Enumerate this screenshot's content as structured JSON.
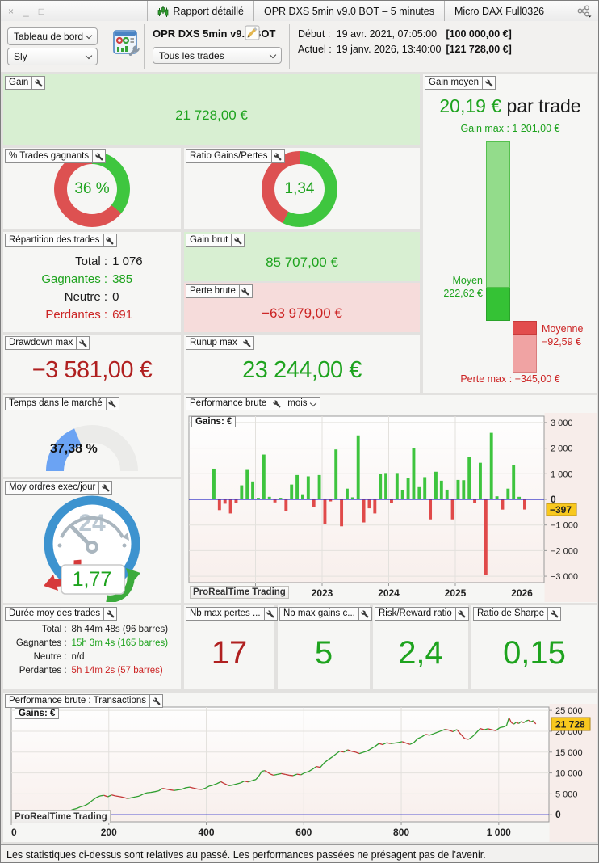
{
  "window": {
    "controls": {
      "close": "×",
      "minimize": "_",
      "maximize": "□"
    },
    "tab_report": "Rapport détaillé",
    "tab_strategy": "OPR DXS 5min v9.0 BOT – 5 minutes",
    "tab_instrument": "Micro DAX Full0326"
  },
  "toolbar": {
    "dashboard_select": "Tableau de bord",
    "user_select": "Sly",
    "strategy_name": "OPR DXS 5min v9.0 BOT",
    "trades_select": "Tous les trades",
    "start": {
      "label": "Début :",
      "datetime": "19 avr. 2021, 07:05:00",
      "amount": "[100 000,00 €]"
    },
    "current": {
      "label": "Actuel :",
      "datetime": "19 janv. 2026, 13:40:00",
      "amount": "[121 728,00 €]"
    }
  },
  "panels": {
    "gain": {
      "label": "Gain",
      "value": "21 728,00 €"
    },
    "pct_wins": {
      "label": "% Trades gagnants",
      "value": "36 %",
      "green_pct": 36
    },
    "ratio_gains_pertes": {
      "label": "Ratio Gains/Pertes",
      "value": "1,34",
      "green_pct": 57.3
    },
    "repartition": {
      "label": "Répartition des trades",
      "rows": [
        {
          "k": "Total :",
          "v": "1 076",
          "cls": "t-black",
          "kcls": "t-black"
        },
        {
          "k": "Gagnantes :",
          "v": "385",
          "cls": "t-green",
          "kcls": "t-green"
        },
        {
          "k": "Neutre :",
          "v": "0",
          "cls": "t-black",
          "kcls": "t-black"
        },
        {
          "k": "Perdantes :",
          "v": "691",
          "cls": "t-red",
          "kcls": "t-red"
        }
      ]
    },
    "gain_brut": {
      "label": "Gain brut",
      "value": "85 707,00 €"
    },
    "perte_brute": {
      "label": "Perte brute",
      "value": "−63 979,00 €"
    },
    "drawdown_max": {
      "label": "Drawdown max",
      "value": "−3 581,00 €"
    },
    "runup_max": {
      "label": "Runup max",
      "value": "23 244,00 €"
    },
    "gain_moyen": {
      "label": "Gain moyen",
      "value": "20,19 €",
      "suffix": " par trade",
      "gain_max": "Gain max : 1 201,00 €",
      "moyen_label": "Moyen",
      "moyen_value": "222,62 €",
      "moyenne_label": "Moyenne",
      "moyenne_value": "−92,59 €",
      "perte_max": "Perte max : −345,00 €",
      "scale": {
        "gain_max_v": 1201,
        "moyen_v": 222.62,
        "moyenne_v": -92.59,
        "perte_max_v": -345
      }
    },
    "temps_marche": {
      "label": "Temps dans le marché",
      "value": "37,38 %",
      "pct": 37.38
    },
    "moy_ordres": {
      "label": "Moy ordres exec/jour",
      "value": "1,77",
      "clock_label": "24"
    },
    "perf_mois": {
      "label": "Performance brute",
      "period": "mois"
    },
    "duree": {
      "label": "Durée moy des trades",
      "rows": [
        {
          "k": "Total :",
          "v": "8h 44m 48s (96 barres)",
          "cls": "t-black",
          "kcls": "t-black"
        },
        {
          "k": "Gagnantes :",
          "v": "15h 3m 4s (165 barres)",
          "cls": "t-green",
          "kcls": "t-black"
        },
        {
          "k": "Neutre :",
          "v": "n/d",
          "cls": "t-black",
          "kcls": "t-black"
        },
        {
          "k": "Perdantes :",
          "v": "5h 14m 2s (57 barres)",
          "cls": "t-red",
          "kcls": "t-black"
        }
      ]
    },
    "nb_max_pertes": {
      "label": "Nb max pertes ...",
      "value": "17"
    },
    "nb_max_gains": {
      "label": "Nb max gains c...",
      "value": "5"
    },
    "risk_reward": {
      "label": "Risk/Reward ratio",
      "value": "2,4"
    },
    "sharpe": {
      "label": "Ratio de Sharpe",
      "value": "0,15"
    },
    "perf_trans": {
      "label": "Performance brute : Transactions"
    }
  },
  "watermark": "ProRealTime Trading",
  "status_bar": "Les statistiques ci-dessus sont relatives au passé. Les performances passées ne présagent pas de l'avenir.",
  "colors": {
    "green_text": "#1ea31e",
    "red_text": "#cc2424",
    "dark_red": "#b02020",
    "bar_green": "#3ec43e",
    "bar_red": "#e04a4a",
    "blue_line": "#2929c8",
    "gauge_blue": "#6ba3f3",
    "tag_bg": "#f8c81e",
    "donut_green": "#3fc63f",
    "donut_red": "#dd5151"
  },
  "chart_data": [
    {
      "type": "bar",
      "title": "Gains: €",
      "period": "mois",
      "start_month": "2021-05",
      "values": [
        1200,
        -420,
        -170,
        -550,
        -130,
        550,
        1150,
        700,
        60,
        1750,
        100,
        -120,
        60,
        -450,
        580,
        950,
        200,
        900,
        -300,
        950,
        -950,
        -80,
        1950,
        -1050,
        420,
        80,
        2500,
        -900,
        -350,
        -550,
        1000,
        1030,
        -150,
        1030,
        350,
        820,
        2000,
        480,
        870,
        -780,
        1080,
        730,
        380,
        -780,
        760,
        750,
        1650,
        -130,
        1430,
        -2950,
        2600,
        120,
        -400,
        420,
        1350,
        100,
        -397
      ],
      "axis_start_month": "2021-01",
      "total_slots": 64,
      "pad_start": 4,
      "year_ticks": [
        {
          "label": "2022",
          "slot": 12
        },
        {
          "label": "2023",
          "slot": 24
        },
        {
          "label": "2024",
          "slot": 36
        },
        {
          "label": "2025",
          "slot": 48
        },
        {
          "label": "2026",
          "slot": 60
        }
      ],
      "ylim": [
        -3250,
        3250
      ],
      "yticks": [
        {
          "v": 3000,
          "label": "3 000"
        },
        {
          "v": 2000,
          "label": "2 000"
        },
        {
          "v": 1000,
          "label": "1 000"
        },
        {
          "v": 0,
          "label": "0",
          "bold": true
        },
        {
          "v": -1000,
          "label": "−1 000"
        },
        {
          "v": -2000,
          "label": "−2 000"
        },
        {
          "v": -3000,
          "label": "−3 000"
        }
      ],
      "last_value": -397,
      "last_value_label": "−397"
    },
    {
      "type": "line",
      "title": "Gains: €",
      "x_axis": "transactions",
      "points": [
        [
          0,
          0
        ],
        [
          8,
          250
        ],
        [
          15,
          550
        ],
        [
          22,
          700
        ],
        [
          30,
          850
        ],
        [
          38,
          520
        ],
        [
          45,
          380
        ],
        [
          52,
          620
        ],
        [
          60,
          350
        ],
        [
          68,
          80
        ],
        [
          75,
          -250
        ],
        [
          82,
          -480
        ],
        [
          88,
          -380
        ],
        [
          95,
          -150
        ],
        [
          102,
          150
        ],
        [
          110,
          420
        ],
        [
          118,
          850
        ],
        [
          126,
          1250
        ],
        [
          134,
          1500
        ],
        [
          142,
          1900
        ],
        [
          150,
          2150
        ],
        [
          158,
          2650
        ],
        [
          166,
          3400
        ],
        [
          174,
          4100
        ],
        [
          182,
          4500
        ],
        [
          190,
          4650
        ],
        [
          198,
          4300
        ],
        [
          206,
          4750
        ],
        [
          214,
          4500
        ],
        [
          222,
          4350
        ],
        [
          230,
          4150
        ],
        [
          238,
          3900
        ],
        [
          246,
          4050
        ],
        [
          254,
          4250
        ],
        [
          262,
          4450
        ],
        [
          270,
          4900
        ],
        [
          278,
          5250
        ],
        [
          286,
          5350
        ],
        [
          294,
          5500
        ],
        [
          302,
          5700
        ],
        [
          310,
          6300
        ],
        [
          318,
          6150
        ],
        [
          326,
          5950
        ],
        [
          334,
          5800
        ],
        [
          342,
          5950
        ],
        [
          350,
          6100
        ],
        [
          358,
          6450
        ],
        [
          366,
          6600
        ],
        [
          374,
          6350
        ],
        [
          382,
          6150
        ],
        [
          390,
          6050
        ],
        [
          398,
          6350
        ],
        [
          406,
          6850
        ],
        [
          414,
          7100
        ],
        [
          422,
          7450
        ],
        [
          430,
          7900
        ],
        [
          438,
          7400
        ],
        [
          446,
          6950
        ],
        [
          454,
          7100
        ],
        [
          462,
          7350
        ],
        [
          470,
          7600
        ],
        [
          478,
          8050
        ],
        [
          486,
          7850
        ],
        [
          494,
          8150
        ],
        [
          502,
          8450
        ],
        [
          508,
          9300
        ],
        [
          514,
          10400
        ],
        [
          520,
          10550
        ],
        [
          526,
          10150
        ],
        [
          532,
          9700
        ],
        [
          538,
          9450
        ],
        [
          546,
          9650
        ],
        [
          554,
          9850
        ],
        [
          562,
          9650
        ],
        [
          570,
          9450
        ],
        [
          578,
          9350
        ],
        [
          586,
          9700
        ],
        [
          594,
          9550
        ],
        [
          602,
          10050
        ],
        [
          610,
          10350
        ],
        [
          618,
          10900
        ],
        [
          626,
          11550
        ],
        [
          634,
          11350
        ],
        [
          642,
          12450
        ],
        [
          650,
          13150
        ],
        [
          658,
          13800
        ],
        [
          666,
          14550
        ],
        [
          674,
          15250
        ],
        [
          682,
          15000
        ],
        [
          690,
          15550
        ],
        [
          698,
          15200
        ],
        [
          706,
          15000
        ],
        [
          714,
          14650
        ],
        [
          722,
          14950
        ],
        [
          730,
          15250
        ],
        [
          738,
          15800
        ],
        [
          746,
          16350
        ],
        [
          754,
          17050
        ],
        [
          762,
          16800
        ],
        [
          770,
          17250
        ],
        [
          778,
          17050
        ],
        [
          786,
          17150
        ],
        [
          794,
          17300
        ],
        [
          802,
          17500
        ],
        [
          810,
          17150
        ],
        [
          818,
          16850
        ],
        [
          826,
          17300
        ],
        [
          834,
          18250
        ],
        [
          842,
          18650
        ],
        [
          850,
          19250
        ],
        [
          858,
          19050
        ],
        [
          866,
          19400
        ],
        [
          874,
          19750
        ],
        [
          882,
          20100
        ],
        [
          890,
          20450
        ],
        [
          898,
          20250
        ],
        [
          906,
          19900
        ],
        [
          914,
          20400
        ],
        [
          922,
          19300
        ],
        [
          930,
          18250
        ],
        [
          938,
          18050
        ],
        [
          946,
          18700
        ],
        [
          954,
          19650
        ],
        [
          962,
          20650
        ],
        [
          970,
          20350
        ],
        [
          978,
          20600
        ],
        [
          986,
          20350
        ],
        [
          994,
          20150
        ],
        [
          1002,
          20850
        ],
        [
          1010,
          21050
        ],
        [
          1016,
          21350
        ],
        [
          1021,
          23244
        ],
        [
          1026,
          22050
        ],
        [
          1031,
          21700
        ],
        [
          1036,
          22150
        ],
        [
          1041,
          21850
        ],
        [
          1046,
          22350
        ],
        [
          1051,
          22050
        ],
        [
          1056,
          22450
        ],
        [
          1061,
          22650
        ],
        [
          1066,
          22250
        ],
        [
          1071,
          22550
        ],
        [
          1076,
          21728
        ]
      ],
      "xlim": [
        0,
        1103
      ],
      "xticks": [
        {
          "v": 0,
          "label": "0"
        },
        {
          "v": 200,
          "label": "200"
        },
        {
          "v": 400,
          "label": "400"
        },
        {
          "v": 600,
          "label": "600"
        },
        {
          "v": 800,
          "label": "800"
        },
        {
          "v": 1000,
          "label": "1 000"
        }
      ],
      "ylim": [
        -1700,
        25800
      ],
      "yticks": [
        {
          "v": 25000,
          "label": "25 000"
        },
        {
          "v": 20000,
          "label": "20 000"
        },
        {
          "v": 15000,
          "label": "15 000"
        },
        {
          "v": 10000,
          "label": "10 000"
        },
        {
          "v": 5000,
          "label": "5 000"
        },
        {
          "v": 0,
          "label": "0",
          "bold": true
        }
      ],
      "last_value": 21728,
      "last_value_label": "21 728"
    }
  ]
}
